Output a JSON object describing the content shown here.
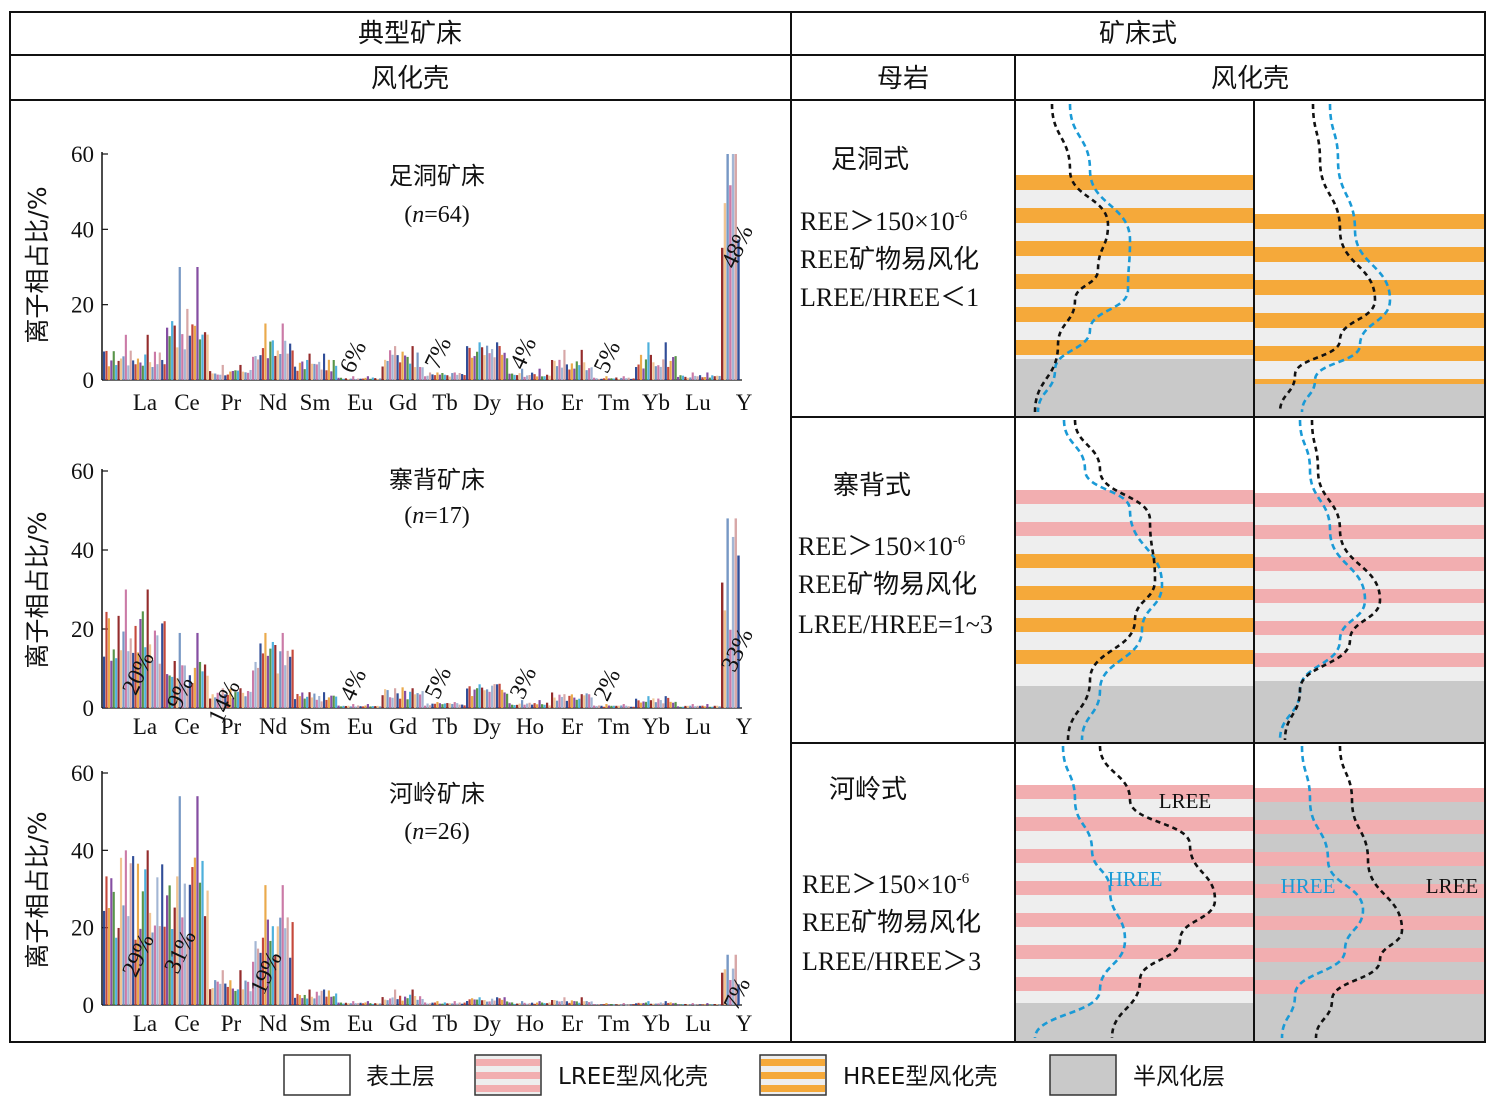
{
  "header": {
    "left_top": "典型矿床",
    "left_sub": "风化壳",
    "right_top": "矿床式",
    "right_sub_parent": "母岩",
    "right_sub_crust": "风化壳"
  },
  "y_axis_label": "离子相占比/%",
  "y_ticks": [
    "0",
    "20",
    "40",
    "60"
  ],
  "x_elements": [
    "La",
    "Ce",
    "Pr",
    "Nd",
    "Sm",
    "Eu",
    "Gd",
    "Tb",
    "Dy",
    "Ho",
    "Er",
    "Tm",
    "Yb",
    "Lu",
    "Y"
  ],
  "chart_data": [
    {
      "type": "bar",
      "title": "足洞矿床",
      "n_label": "n",
      "n_value": "=64",
      "ylabel": "离子相占比/%",
      "ylim": [
        0,
        60
      ],
      "categories": [
        "La",
        "Ce",
        "Pr",
        "Nd",
        "Sm",
        "Eu",
        "Gd",
        "Tb",
        "Dy",
        "Ho",
        "Er",
        "Tm",
        "Yb",
        "Lu",
        "Y"
      ],
      "values": [
        6,
        14,
        2,
        8,
        4,
        0.5,
        6,
        1.5,
        7,
        1.5,
        4,
        0.5,
        5,
        1,
        48
      ],
      "maxima": [
        12,
        30,
        4,
        15,
        7,
        1,
        9,
        2,
        10,
        3,
        8,
        1,
        10,
        2,
        60
      ],
      "annotations": [
        {
          "category": "Eu",
          "text": "6%"
        },
        {
          "category": "Tb",
          "text": "7%"
        },
        {
          "category": "Ho",
          "text": "4%"
        },
        {
          "category": "Tm",
          "text": "5%"
        },
        {
          "category": "Y",
          "text": "48%"
        }
      ]
    },
    {
      "type": "bar",
      "title": "寨背矿床",
      "n_label": "n",
      "n_value": "=17",
      "ylabel": "离子相占比/%",
      "ylim": [
        0,
        60
      ],
      "categories": [
        "La",
        "Ce",
        "Pr",
        "Nd",
        "Sm",
        "Eu",
        "Gd",
        "Tb",
        "Dy",
        "Ho",
        "Er",
        "Tm",
        "Yb",
        "Lu",
        "Y"
      ],
      "values": [
        20,
        9,
        4,
        14,
        3,
        0.5,
        4,
        1,
        5,
        1,
        3,
        0.5,
        2,
        0.5,
        33
      ],
      "maxima": [
        30,
        19,
        5,
        19,
        4,
        1,
        5,
        1.5,
        6,
        2,
        3.5,
        1,
        3,
        1,
        48
      ],
      "annotations": [
        {
          "category": "La",
          "text": "20%"
        },
        {
          "category": "Ce",
          "text": "9%"
        },
        {
          "category": "Pr",
          "text": "14%"
        },
        {
          "category": "Eu",
          "text": "4%"
        },
        {
          "category": "Tb",
          "text": "5%"
        },
        {
          "category": "Ho",
          "text": "3%"
        },
        {
          "category": "Tm",
          "text": "2%"
        },
        {
          "category": "Y",
          "text": "33%"
        }
      ]
    },
    {
      "type": "bar",
      "title": "河岭矿床",
      "n_label": "n",
      "n_value": "=26",
      "ylabel": "离子相占比/%",
      "ylim": [
        0,
        60
      ],
      "categories": [
        "La",
        "Ce",
        "Pr",
        "Nd",
        "Sm",
        "Eu",
        "Gd",
        "Tb",
        "Dy",
        "Ho",
        "Er",
        "Tm",
        "Yb",
        "Lu",
        "Y"
      ],
      "values": [
        29,
        31,
        5,
        19,
        3,
        0.5,
        2,
        0.5,
        1.5,
        0.5,
        1,
        0.2,
        0.5,
        0.2,
        7
      ],
      "maxima": [
        40,
        54,
        9,
        31,
        4,
        1,
        4,
        1,
        2,
        1,
        2,
        0.5,
        1,
        0.5,
        13
      ],
      "annotations": [
        {
          "category": "La",
          "text": "29%"
        },
        {
          "category": "Ce",
          "text": "31%"
        },
        {
          "category": "Nd",
          "text": "19%"
        },
        {
          "category": "Y",
          "text": "7%"
        }
      ]
    }
  ],
  "deposit_models": [
    {
      "name": "足洞式",
      "criteria": [
        "REE＞150×10",
        "-6",
        "REE矿物易风化",
        "LREE/HREE＜1"
      ]
    },
    {
      "name": "寨背式",
      "criteria": [
        "REE＞150×10",
        "-6",
        "REE矿物易风化",
        "LREE/HREE=1~3"
      ]
    },
    {
      "name": "河岭式",
      "criteria": [
        "REE＞150×10",
        "-6",
        "REE矿物易风化",
        "LREE/HREE＞3"
      ]
    }
  ],
  "curve_labels": {
    "lree": "LREE",
    "hree": "HREE"
  },
  "legend": [
    "表土层",
    "LREE型风化壳",
    "HREE型风化壳",
    "半风化层"
  ],
  "colors": {
    "lree": "#f2aeb0",
    "hree": "#f5a93a",
    "stripe": "#eeeeee",
    "semi": "#c9c9c9",
    "hree_curve": "#1a9ad6",
    "lree_curve": "#111111"
  }
}
